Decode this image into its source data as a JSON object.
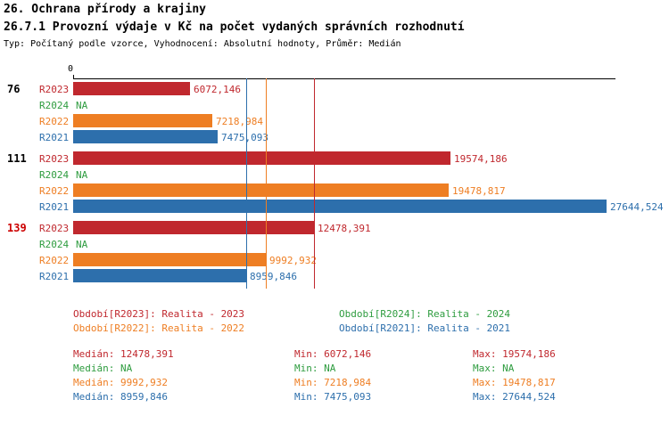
{
  "title": "26. Ochrana přírody a krajiny",
  "subtitle": "26.7.1 Provozní výdaje v Kč na počet vydaných správních rozhodnutí",
  "meta": "Typ: Počítaný podle vzorce, Vyhodnocení: Absolutní hodnoty, Průměr: Medián",
  "colors": {
    "R2023": "#C0282E",
    "R2024": "#2E9C3F",
    "R2022": "#EE7E23",
    "R2021": "#2D6FAC",
    "axis": "#000000",
    "group_label_default": "#000000",
    "group_label_highlight": "#CC0000"
  },
  "chart_data": {
    "type": "bar",
    "orientation": "horizontal",
    "axis_max": 27644.524,
    "axis_start_label": "0",
    "grid": false,
    "groups": [
      {
        "label": "76",
        "label_color": "#000000",
        "bars": [
          {
            "series": "R2023",
            "display": "6072,146",
            "value": 6072.146
          },
          {
            "series": "R2024",
            "display": "NA",
            "value": null
          },
          {
            "series": "R2022",
            "display": "7218,984",
            "value": 7218.984
          },
          {
            "series": "R2021",
            "display": "7475,093",
            "value": 7475.093
          }
        ]
      },
      {
        "label": "111",
        "label_color": "#000000",
        "bars": [
          {
            "series": "R2023",
            "display": "19574,186",
            "value": 19574.186
          },
          {
            "series": "R2024",
            "display": "NA",
            "value": null
          },
          {
            "series": "R2022",
            "display": "19478,817",
            "value": 19478.817
          },
          {
            "series": "R2021",
            "display": "27644,524",
            "value": 27644.524
          }
        ]
      },
      {
        "label": "139",
        "label_color": "#CC0000",
        "bars": [
          {
            "series": "R2023",
            "display": "12478,391",
            "value": 12478.391
          },
          {
            "series": "R2024",
            "display": "NA",
            "value": null
          },
          {
            "series": "R2022",
            "display": "9992,932",
            "value": 9992.932
          },
          {
            "series": "R2021",
            "display": "8959,846",
            "value": 8959.846
          }
        ]
      }
    ],
    "median_lines": [
      {
        "series": "R2021",
        "value": 8959.846
      },
      {
        "series": "R2022",
        "value": 9992.932
      },
      {
        "series": "R2023",
        "value": 12478.391
      }
    ]
  },
  "legend": [
    {
      "series": "R2023",
      "text": "Období[R2023]: Realita - 2023"
    },
    {
      "series": "R2024",
      "text": "Období[R2024]: Realita - 2024"
    },
    {
      "series": "R2022",
      "text": "Období[R2022]: Realita - 2022"
    },
    {
      "series": "R2021",
      "text": "Období[R2021]: Realita - 2021"
    }
  ],
  "stats_labels": {
    "median": "Medián:",
    "min": "Min:",
    "max": "Max:"
  },
  "stats": [
    {
      "series": "R2023",
      "median": "12478,391",
      "min": "6072,146",
      "max": "19574,186"
    },
    {
      "series": "R2024",
      "median": "NA",
      "min": "NA",
      "max": "NA"
    },
    {
      "series": "R2022",
      "median": "9992,932",
      "min": "7218,984",
      "max": "19478,817"
    },
    {
      "series": "R2021",
      "median": "8959,846",
      "min": "7475,093",
      "max": "27644,524"
    }
  ]
}
